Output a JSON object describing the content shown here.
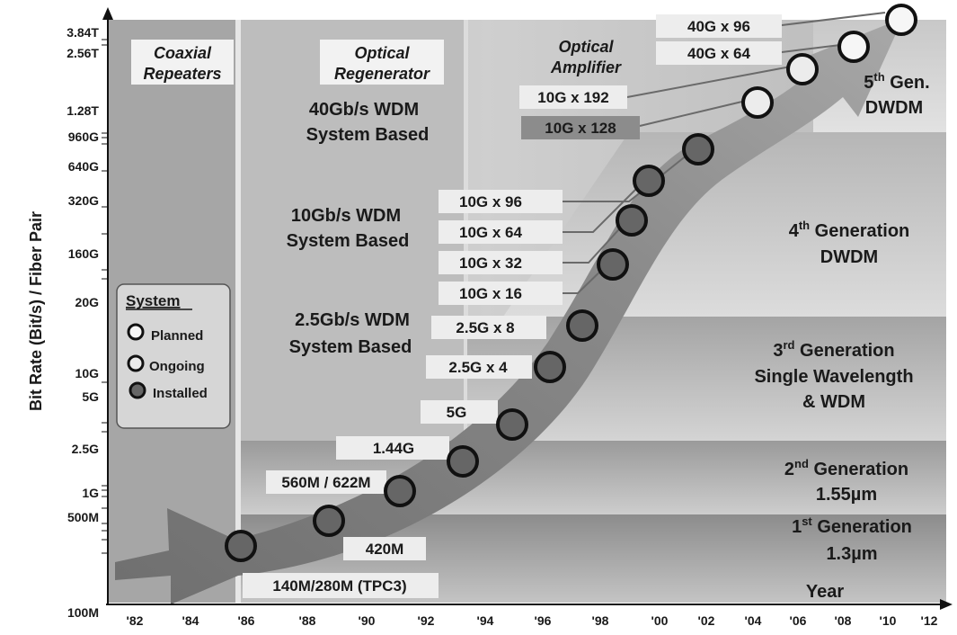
{
  "axes": {
    "y_title": "Bit Rate (Bit/s) / Fiber Pair",
    "x_title": "Year",
    "y_ticks": [
      "3.84T",
      "2.56T",
      "1.28T",
      "960G",
      "640G",
      "320G",
      "160G",
      "20G",
      "10G",
      "5G",
      "2.5G",
      "1G",
      "500M",
      "100M"
    ],
    "x_ticks": [
      "'82",
      "'84",
      "'86",
      "'88",
      "'90",
      "'92",
      "'94",
      "'96",
      "'98",
      "'00",
      "'02",
      "'04",
      "'06",
      "'08",
      "'10",
      "'12"
    ]
  },
  "eras": {
    "coaxial": [
      "Coaxial",
      "Repeaters"
    ],
    "regenerator": [
      "Optical",
      "Regenerator"
    ],
    "amplifier": [
      "Optical",
      "Amplifier"
    ]
  },
  "system_labels": {
    "wdm40": [
      "40Gb/s WDM",
      "System Based"
    ],
    "wdm10": [
      "10Gb/s WDM",
      "System Based"
    ],
    "wdm25": [
      "2.5Gb/s WDM",
      "System Based"
    ]
  },
  "generations": {
    "g5": {
      "line1": "5",
      "sup": "th",
      "rest": " Gen.",
      "line2": "DWDM"
    },
    "g4": {
      "line1": "4",
      "sup": "th",
      "rest": " Generation",
      "line2": "DWDM"
    },
    "g3": {
      "line1": "3",
      "sup": "rd",
      "rest": " Generation",
      "line2": "Single Wavelength",
      "line3": "& WDM"
    },
    "g2": {
      "line1": "2",
      "sup": "nd",
      "rest": " Generation",
      "line2": "1.55µm"
    },
    "g1": {
      "line1": "1",
      "sup": "st",
      "rest": " Generation",
      "line2": "1.3µm"
    }
  },
  "capacity_labels": {
    "c40x96": "40G x 96",
    "c40x64": "40G x 64",
    "c10x192": "10G x 192",
    "c10x128": "10G x 128",
    "c10x96": "10G x 96",
    "c10x64": "10G x 64",
    "c10x32": "10G x 32",
    "c10x16": "10G x 16",
    "c25x8": "2.5G x 8",
    "c25x4": "2.5G x 4",
    "c5g": "5G",
    "c144": "1.44G",
    "c560": "560M / 622M",
    "c420": "420M",
    "c140": "140M/280M (TPC3)"
  },
  "legend": {
    "title": "System",
    "planned": "Planned",
    "ongoing": "Ongoing",
    "installed": "Installed"
  },
  "colors": {
    "installed": "#666666",
    "ongoing": "#d0d0d0",
    "planned": "#f4f4f4",
    "arrow": "#7d7d7d"
  }
}
